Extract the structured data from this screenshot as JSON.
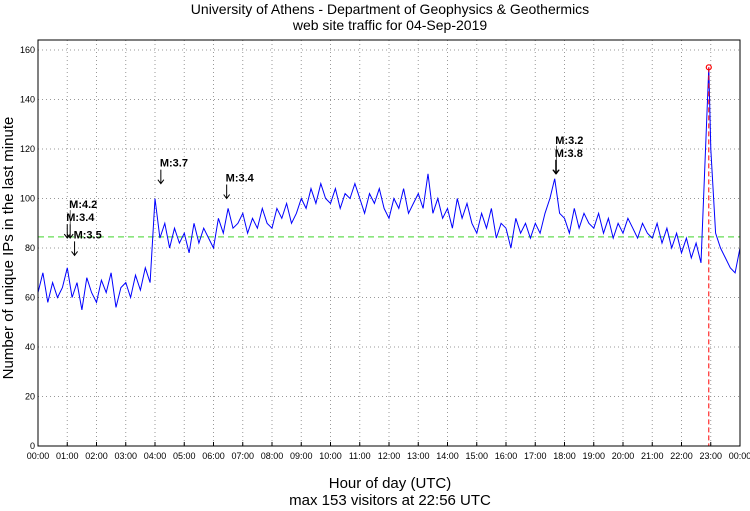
{
  "chart_data": {
    "type": "line",
    "title": "University of Athens - Department of Geophysics & Geothermics",
    "subtitle": "web site traffic for 04-Sep-2019",
    "xlabel": "Hour of day (UTC)",
    "footer": "max 153 visitors at 22:56 UTC",
    "ylabel": "Number of unique IPs in the last minute",
    "xlim": [
      0,
      24
    ],
    "ylim": [
      0,
      160
    ],
    "yticks": [
      0,
      20,
      40,
      60,
      80,
      100,
      120,
      140,
      160
    ],
    "xticks": [
      "00:00",
      "01:00",
      "02:00",
      "03:00",
      "04:00",
      "05:00",
      "06:00",
      "07:00",
      "08:00",
      "09:00",
      "10:00",
      "11:00",
      "12:00",
      "13:00",
      "14:00",
      "15:00",
      "16:00",
      "17:00",
      "18:00",
      "19:00",
      "20:00",
      "21:00",
      "22:00",
      "23:00",
      "00:00"
    ],
    "grid": true,
    "mean_line": 84.5,
    "max": {
      "value": 153,
      "hour": 22.933
    },
    "series": [
      {
        "name": "visitors",
        "color": "#0000ff",
        "step_minutes": 10,
        "values": [
          62,
          70,
          58,
          66,
          60,
          64,
          72,
          60,
          66,
          55,
          68,
          62,
          58,
          67,
          62,
          70,
          56,
          64,
          66,
          60,
          69,
          63,
          72,
          66,
          100,
          84,
          90,
          80,
          88,
          82,
          86,
          78,
          90,
          82,
          88,
          84,
          80,
          92,
          86,
          96,
          88,
          90,
          94,
          86,
          92,
          88,
          96,
          90,
          88,
          96,
          92,
          98,
          90,
          94,
          100,
          96,
          104,
          98,
          106,
          100,
          98,
          104,
          96,
          102,
          100,
          106,
          100,
          94,
          102,
          98,
          104,
          96,
          92,
          100,
          96,
          104,
          94,
          98,
          102,
          96,
          110,
          94,
          100,
          92,
          96,
          88,
          100,
          92,
          98,
          90,
          86,
          94,
          88,
          96,
          84,
          90,
          88,
          80,
          92,
          86,
          90,
          84,
          90,
          86,
          94,
          100,
          108,
          94,
          92,
          86,
          96,
          88,
          94,
          90,
          88,
          94,
          86,
          92,
          84,
          90,
          86,
          92,
          88,
          84,
          90,
          86,
          84,
          90,
          82,
          88,
          80,
          86,
          78,
          84,
          76,
          82,
          74,
          145,
          120,
          86,
          80,
          76,
          72,
          70,
          80
        ]
      }
    ],
    "annotations": [
      {
        "label": "M:3.4",
        "hour": 1.0,
        "value": 84
      },
      {
        "label": "M:4.2",
        "hour": 1.1,
        "value": 84
      },
      {
        "label": "M:3.5",
        "hour": 1.25,
        "value": 77
      },
      {
        "label": "M:3.7",
        "hour": 4.2,
        "value": 106
      },
      {
        "label": "M:3.4",
        "hour": 6.45,
        "value": 100
      },
      {
        "label": "M:3.8",
        "hour": 17.7,
        "value": 110
      },
      {
        "label": "M:3.2",
        "hour": 17.72,
        "value": 110
      }
    ]
  }
}
